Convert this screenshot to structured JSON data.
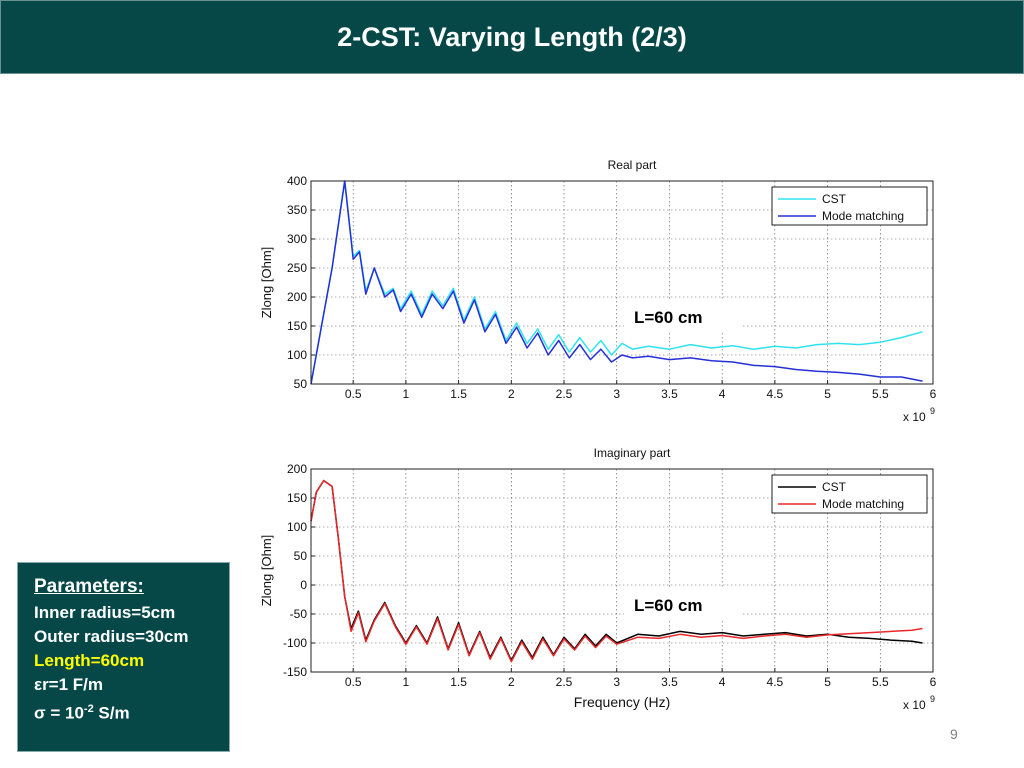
{
  "slide": {
    "title": "2-CST: Varying Length (2/3)",
    "page_number": "9"
  },
  "params": {
    "heading": "Parameters:",
    "lines": [
      "Inner radius=5cm",
      "Outer radius=30cm",
      "Length=60cm",
      "εr=1 F/m"
    ],
    "sigma_prefix": "σ  = 10",
    "sigma_exp": "-2",
    "sigma_suffix": " S/m",
    "highlight_color": "#ffff00"
  },
  "chart_data": [
    {
      "type": "line",
      "title": "Real part",
      "xlabel": "",
      "ylabel": "Zlong [Ohm]",
      "xlim": [
        0.1,
        6
      ],
      "ylim": [
        50,
        400
      ],
      "xticks": [
        0.5,
        1,
        1.5,
        2,
        2.5,
        3,
        3.5,
        4,
        4.5,
        5,
        5.5,
        6
      ],
      "yticks": [
        50,
        100,
        150,
        200,
        250,
        300,
        350,
        400
      ],
      "x_multiplier_base": "x 10",
      "x_multiplier_exp": "9",
      "annotation": "L=60 cm",
      "grid": true,
      "legend_position": "top-right",
      "series": [
        {
          "name": "CST",
          "color": "#2fe3ee",
          "x": [
            0.1,
            0.2,
            0.3,
            0.42,
            0.5,
            0.56,
            0.62,
            0.7,
            0.8,
            0.88,
            0.95,
            1.05,
            1.15,
            1.25,
            1.35,
            1.45,
            1.55,
            1.65,
            1.75,
            1.85,
            1.95,
            2.05,
            2.15,
            2.25,
            2.35,
            2.45,
            2.55,
            2.65,
            2.75,
            2.85,
            2.95,
            3.05,
            3.15,
            3.3,
            3.5,
            3.7,
            3.9,
            4.1,
            4.3,
            4.5,
            4.7,
            4.9,
            5.1,
            5.3,
            5.5,
            5.7,
            5.9
          ],
          "y": [
            50,
            150,
            250,
            400,
            270,
            280,
            210,
            250,
            205,
            215,
            180,
            210,
            170,
            210,
            185,
            215,
            160,
            200,
            145,
            175,
            125,
            155,
            120,
            145,
            110,
            135,
            105,
            130,
            105,
            125,
            100,
            120,
            110,
            115,
            110,
            118,
            112,
            116,
            110,
            115,
            112,
            118,
            120,
            118,
            122,
            130,
            140
          ]
        },
        {
          "name": "Mode matching",
          "color": "#2530d8",
          "x": [
            0.1,
            0.2,
            0.3,
            0.42,
            0.5,
            0.56,
            0.62,
            0.7,
            0.8,
            0.88,
            0.95,
            1.05,
            1.15,
            1.25,
            1.35,
            1.45,
            1.55,
            1.65,
            1.75,
            1.85,
            1.95,
            2.05,
            2.15,
            2.25,
            2.35,
            2.45,
            2.55,
            2.65,
            2.75,
            2.85,
            2.95,
            3.05,
            3.15,
            3.3,
            3.5,
            3.7,
            3.9,
            4.1,
            4.3,
            4.5,
            4.7,
            4.9,
            5.1,
            5.3,
            5.5,
            5.7,
            5.9
          ],
          "y": [
            50,
            150,
            250,
            400,
            265,
            278,
            205,
            250,
            200,
            212,
            175,
            205,
            165,
            205,
            180,
            210,
            155,
            195,
            140,
            170,
            120,
            148,
            112,
            138,
            100,
            125,
            95,
            118,
            92,
            110,
            88,
            100,
            95,
            98,
            92,
            95,
            90,
            88,
            82,
            80,
            75,
            72,
            70,
            67,
            62,
            62,
            55
          ]
        }
      ]
    },
    {
      "type": "line",
      "title": "Imaginary part",
      "xlabel": "Frequency (Hz)",
      "ylabel": "Zlong [Ohm]",
      "xlim": [
        0.1,
        6
      ],
      "ylim": [
        -150,
        200
      ],
      "xticks": [
        0.5,
        1,
        1.5,
        2,
        2.5,
        3,
        3.5,
        4,
        4.5,
        5,
        5.5,
        6
      ],
      "yticks": [
        -150,
        -100,
        -50,
        0,
        50,
        100,
        150,
        200
      ],
      "x_multiplier_base": "x 10",
      "x_multiplier_exp": "9",
      "annotation": "L=60 cm",
      "grid": true,
      "legend_position": "top-right",
      "series": [
        {
          "name": "CST",
          "color": "#000000",
          "x": [
            0.1,
            0.15,
            0.22,
            0.3,
            0.36,
            0.42,
            0.48,
            0.55,
            0.62,
            0.7,
            0.8,
            0.9,
            1.0,
            1.1,
            1.2,
            1.3,
            1.4,
            1.5,
            1.6,
            1.7,
            1.8,
            1.9,
            2.0,
            2.1,
            2.2,
            2.3,
            2.4,
            2.5,
            2.6,
            2.7,
            2.8,
            2.9,
            3.0,
            3.2,
            3.4,
            3.6,
            3.8,
            4.0,
            4.2,
            4.4,
            4.6,
            4.8,
            5.0,
            5.2,
            5.4,
            5.6,
            5.8,
            5.9
          ],
          "y": [
            110,
            160,
            180,
            170,
            80,
            -20,
            -75,
            -45,
            -95,
            -60,
            -30,
            -70,
            -100,
            -70,
            -100,
            -55,
            -110,
            -65,
            -120,
            -80,
            -125,
            -90,
            -130,
            -95,
            -125,
            -90,
            -120,
            -90,
            -110,
            -85,
            -105,
            -85,
            -100,
            -85,
            -88,
            -80,
            -85,
            -82,
            -88,
            -85,
            -82,
            -88,
            -85,
            -90,
            -92,
            -95,
            -97,
            -100
          ]
        },
        {
          "name": "Mode matching",
          "color": "#e8282a",
          "x": [
            0.1,
            0.15,
            0.22,
            0.3,
            0.36,
            0.42,
            0.48,
            0.55,
            0.62,
            0.7,
            0.8,
            0.9,
            1.0,
            1.1,
            1.2,
            1.3,
            1.4,
            1.5,
            1.6,
            1.7,
            1.8,
            1.9,
            2.0,
            2.1,
            2.2,
            2.3,
            2.4,
            2.5,
            2.6,
            2.7,
            2.8,
            2.9,
            3.0,
            3.2,
            3.4,
            3.6,
            3.8,
            4.0,
            4.2,
            4.4,
            4.6,
            4.8,
            5.0,
            5.2,
            5.4,
            5.6,
            5.8,
            5.9
          ],
          "y": [
            110,
            160,
            180,
            170,
            80,
            -20,
            -80,
            -48,
            -98,
            -62,
            -32,
            -72,
            -102,
            -72,
            -102,
            -58,
            -112,
            -68,
            -122,
            -82,
            -128,
            -92,
            -132,
            -98,
            -128,
            -93,
            -122,
            -93,
            -112,
            -88,
            -108,
            -88,
            -102,
            -90,
            -92,
            -85,
            -90,
            -87,
            -92,
            -88,
            -85,
            -90,
            -86,
            -84,
            -82,
            -80,
            -78,
            -75
          ]
        }
      ]
    }
  ]
}
